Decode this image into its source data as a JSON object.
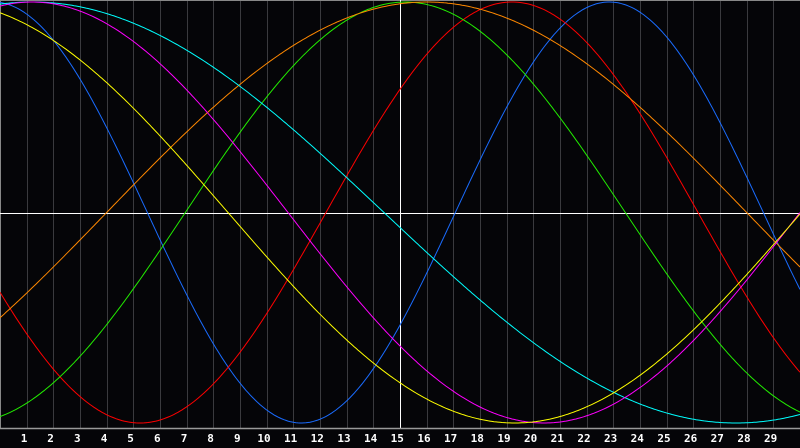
{
  "chart_data": {
    "type": "line",
    "title": "",
    "xlabel": "",
    "ylabel": "",
    "xlim": [
      0,
      30
    ],
    "ylim": [
      -1,
      1
    ],
    "grid": true,
    "x_tick_labels": [
      "1",
      "2",
      "3",
      "4",
      "5",
      "6",
      "7",
      "8",
      "9",
      "10",
      "11",
      "12",
      "13",
      "14",
      "15",
      "16",
      "17",
      "18",
      "19",
      "20",
      "21",
      "22",
      "23",
      "24",
      "25",
      "26",
      "27",
      "28",
      "29"
    ],
    "reference_lines": {
      "horizontal_y": 0,
      "vertical_x": 15
    },
    "background_color": "#050508",
    "series": [
      {
        "color": "#1a6cff",
        "function": "cosine",
        "amplitude": 1,
        "period": 23.1,
        "peak_x": 22.85
      },
      {
        "color": "#ff0000",
        "function": "cosine",
        "amplitude": 1,
        "period": 27.9,
        "peak_x": 19.2
      },
      {
        "color": "#22ee00",
        "function": "cosine",
        "amplitude": 1,
        "period": 33.0,
        "peak_x": 15.2
      },
      {
        "color": "#ff8800",
        "function": "cosine",
        "amplitude": 1,
        "period": 48.0,
        "peak_x": 16.0
      },
      {
        "color": "#00ffff",
        "function": "cosine",
        "amplitude": 1,
        "period": 52.8,
        "peak_x": 1.2
      },
      {
        "color": "#ff00ff",
        "function": "cosine",
        "amplitude": 1,
        "period": 38.4,
        "peak_x": 1.2
      },
      {
        "color": "#ffff00",
        "function": "cosine",
        "amplitude": 1,
        "period": 43.0,
        "peak_x": -2.2
      }
    ]
  }
}
